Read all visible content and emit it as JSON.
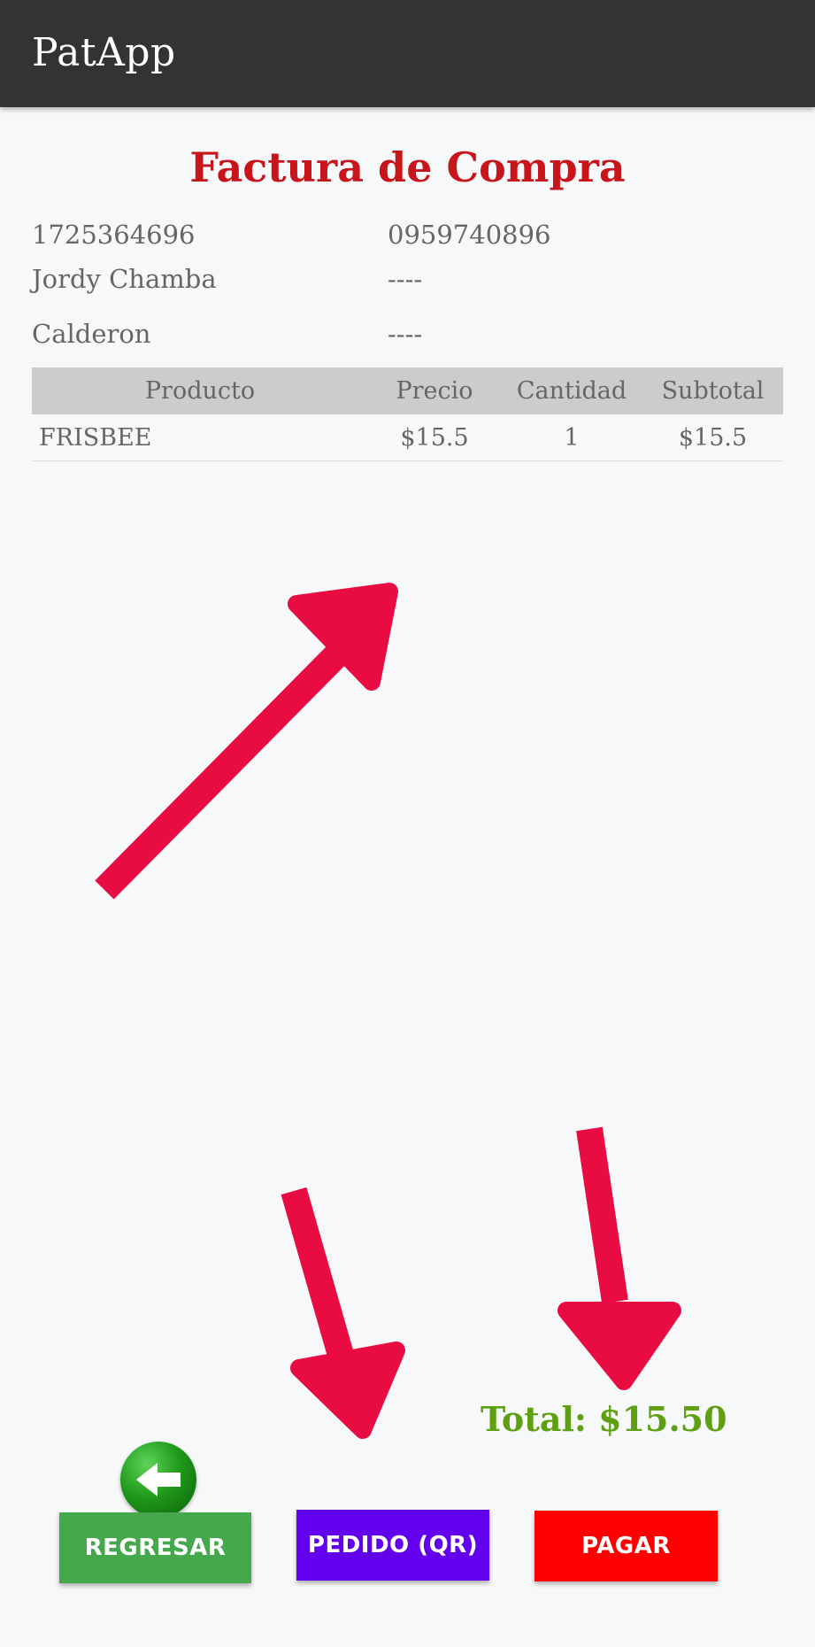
{
  "app": {
    "title": "PatApp"
  },
  "invoice": {
    "title": "Factura de Compra",
    "customer_id": "1725364696",
    "phone": "0959740896",
    "first_name": "Jordy Chamba",
    "last_name": "Calderon",
    "field_placeholder_1": "----",
    "field_placeholder_2": "----"
  },
  "table": {
    "headers": [
      "Producto",
      "Precio",
      "Cantidad",
      "Subtotal"
    ],
    "rows": [
      {
        "product": "FRISBEE",
        "price": "$15.5",
        "quantity": "1",
        "subtotal": "$15.5"
      }
    ]
  },
  "total": {
    "label": "Total: $15.50"
  },
  "buttons": {
    "back": "REGRESAR",
    "order_qr": "PEDIDO (QR)",
    "pay": "PAGAR"
  },
  "colors": {
    "appbar": "#333333",
    "title": "#c8151b",
    "total": "#5ea012",
    "back_button": "#46a84d",
    "qr_button": "#6200ee",
    "pay_button": "#ff0000",
    "annotation_arrow": "#e80c42"
  }
}
